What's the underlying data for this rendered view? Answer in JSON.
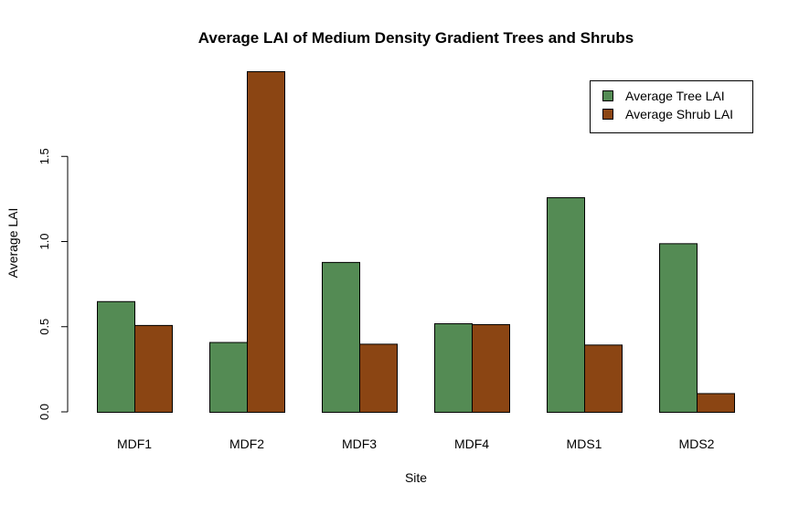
{
  "chart_data": {
    "type": "bar",
    "title": "Average LAI of Medium Density Gradient Trees and Shrubs",
    "xlabel": "Site",
    "ylabel": "Average LAI",
    "categories": [
      "MDF1",
      "MDF2",
      "MDF3",
      "MDF4",
      "MDS1",
      "MDS2"
    ],
    "series": [
      {
        "name": "Average Tree LAI",
        "color": "#548B54",
        "values": [
          0.65,
          0.41,
          0.88,
          0.52,
          1.26,
          0.99
        ]
      },
      {
        "name": "Average Shrub LAI",
        "color": "#8B4513",
        "values": [
          0.51,
          2.0,
          0.4,
          0.515,
          0.395,
          0.11
        ]
      }
    ],
    "ylim": [
      0,
      2.0
    ],
    "yticks": [
      0.0,
      0.5,
      1.0,
      1.5
    ],
    "ytick_labels": [
      "0.0",
      "0.5",
      "1.0",
      "1.5"
    ],
    "grid": false,
    "legend_position": "top-right"
  }
}
